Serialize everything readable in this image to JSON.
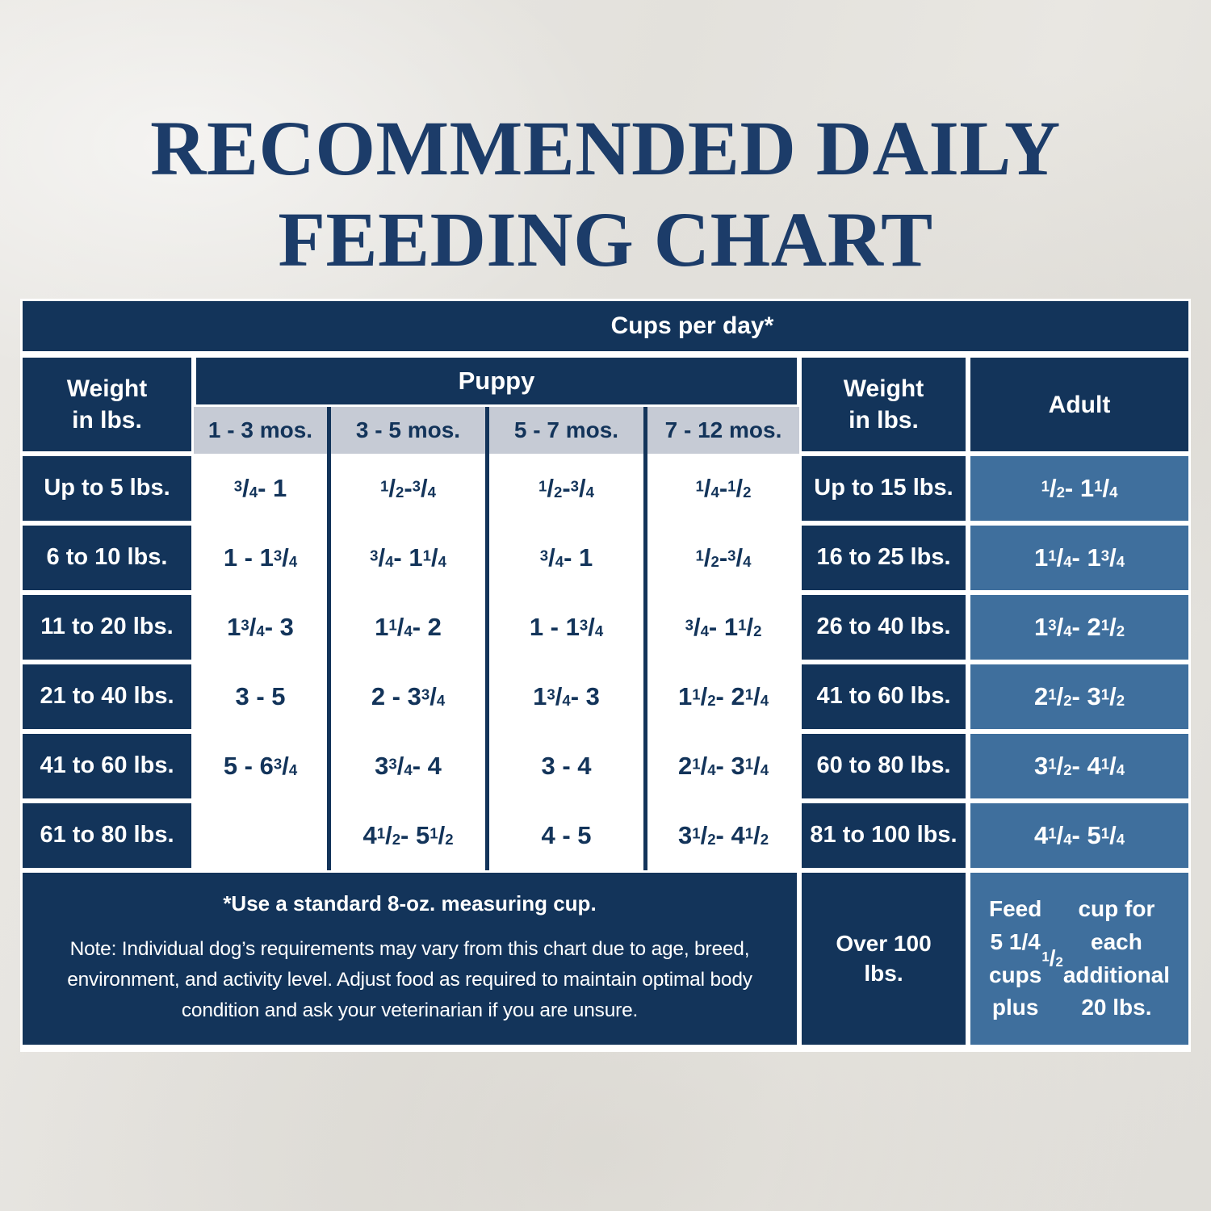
{
  "title": {
    "line1": "RECOMMENDED DAILY",
    "line2": "FEEDING CHART"
  },
  "colors": {
    "navy": "#13345a",
    "blue": "#3f6f9d",
    "gray": "#c6cbd5",
    "bg": "#e7e5e1",
    "title": "#1c3c69"
  },
  "chart_data": {
    "type": "table",
    "title": "RECOMMENDED DAILY FEEDING CHART",
    "cups_header": "Cups per day*",
    "weight_header": {
      "line1": "Weight",
      "line2": "in lbs."
    },
    "puppy_header": "Puppy",
    "adult_header": "Adult",
    "puppy_age_columns": [
      "1 - 3 mos.",
      "3 - 5 mos.",
      "5 - 7 mos.",
      "7 - 12 mos."
    ],
    "puppy_rows": [
      {
        "weight": "Up to 5 lbs.",
        "values": [
          "¾ - 1",
          "½ - ¾",
          "½ - ¾",
          "¼ - ½"
        ]
      },
      {
        "weight": "6 to 10 lbs.",
        "values": [
          "1 - 1 ¾",
          "¾ - 1 ¼",
          "¾ - 1",
          "½ - ¾"
        ]
      },
      {
        "weight": "11 to 20 lbs.",
        "values": [
          "1 ¾ - 3",
          "1 ¼ - 2",
          "1 - 1 ¾",
          "¾ - 1 ½"
        ]
      },
      {
        "weight": "21 to 40 lbs.",
        "values": [
          "3 - 5",
          "2 - 3 ¾",
          "1 ¾ - 3",
          "1 ½ - 2 ¼"
        ]
      },
      {
        "weight": "41 to 60 lbs.",
        "values": [
          "5 - 6 ¾",
          "3 ¾ - 4",
          "3 - 4",
          "2 ¼ - 3 ¼"
        ]
      },
      {
        "weight": "61 to 80 lbs.",
        "values": [
          "",
          "4 ½ - 5 ½",
          "4 - 5",
          "3 ½ - 4 ½"
        ]
      }
    ],
    "adult_rows": [
      {
        "weight": "Up to 15 lbs.",
        "value": "½ - 1 ¼"
      },
      {
        "weight": "16 to 25 lbs.",
        "value": "1 ¼ - 1 ¾"
      },
      {
        "weight": "26 to 40 lbs.",
        "value": "1 ¾ - 2 ½"
      },
      {
        "weight": "41 to 60 lbs.",
        "value": "2 ½ - 3 ½"
      },
      {
        "weight": "60 to 80 lbs.",
        "value": "3 ½ - 4 ¼"
      },
      {
        "weight": "81 to 100 lbs.",
        "value": "4 ¼ - 5 ¼"
      }
    ],
    "notes": {
      "measuring_cup": "*Use a standard 8-oz. measuring cup.",
      "disclaimer": "Note: Individual dog’s requirements may vary from this chart due to age, breed, environment, and activity level. Adjust food as required to maintain optimal body condition and ask your veterinarian if you are unsure."
    },
    "over_100": {
      "weight": "Over 100 lbs.",
      "instruction": "Feed 5 1/4 cups plus ½ cup for each additional 20 lbs."
    }
  }
}
